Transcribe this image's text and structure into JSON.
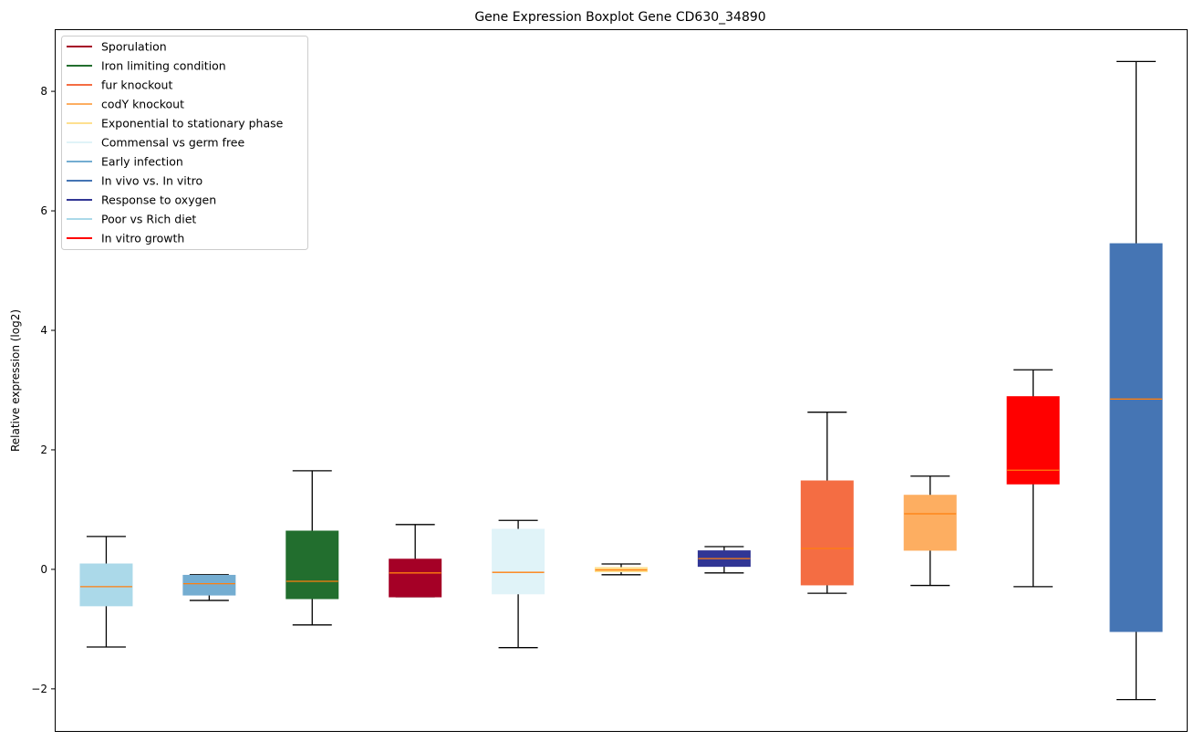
{
  "chart_data": {
    "type": "boxplot",
    "title": "Gene Expression Boxplot Gene CD630_34890",
    "xlabel": "",
    "ylabel": "Relative expression (log2)",
    "ylim": [
      -2.72,
      9.04
    ],
    "yticks": [
      -2,
      0,
      2,
      4,
      6,
      8
    ],
    "ytick_labels": [
      "−2",
      "0",
      "2",
      "4",
      "6",
      "8"
    ],
    "grid": false,
    "legend_position": "top-left",
    "median_color": "#ff7f0e",
    "legend": [
      {
        "label": "Sporulation",
        "color": "#a50026"
      },
      {
        "label": "Iron limiting condition",
        "color": "#226e2e"
      },
      {
        "label": "fur knockout",
        "color": "#f46d43"
      },
      {
        "label": "codY knockout",
        "color": "#fdae61"
      },
      {
        "label": "Exponential to stationary phase",
        "color": "#fee090"
      },
      {
        "label": "Commensal vs germ free",
        "color": "#e0f3f8"
      },
      {
        "label": "Early infection",
        "color": "#74add1"
      },
      {
        "label": "In vivo vs. In vitro",
        "color": "#4575b4"
      },
      {
        "label": "Response to oxygen",
        "color": "#313695"
      },
      {
        "label": "Poor vs Rich diet",
        "color": "#abd9e9"
      },
      {
        "label": "In vitro growth",
        "color": "#ff0000"
      }
    ],
    "boxes": [
      {
        "group": "Poor vs Rich diet",
        "color": "#abd9e9",
        "whislo": -1.3,
        "q1": -0.61,
        "med": -0.29,
        "q3": 0.09,
        "whishi": 0.55
      },
      {
        "group": "Early infection",
        "color": "#74add1",
        "whislo": -0.52,
        "q1": -0.43,
        "med": -0.24,
        "q3": -0.1,
        "whishi": -0.09
      },
      {
        "group": "Iron limiting condition",
        "color": "#226e2e",
        "whislo": -0.93,
        "q1": -0.49,
        "med": -0.2,
        "q3": 0.64,
        "whishi": 1.65
      },
      {
        "group": "Sporulation",
        "color": "#a50026",
        "whislo": -0.46,
        "q1": -0.46,
        "med": -0.06,
        "q3": 0.17,
        "whishi": 0.75
      },
      {
        "group": "Commensal vs germ free",
        "color": "#e0f3f8",
        "whislo": -1.31,
        "q1": -0.41,
        "med": -0.05,
        "q3": 0.67,
        "whishi": 0.82
      },
      {
        "group": "Exponential to stationary phase",
        "color": "#fee090",
        "whislo": -0.09,
        "q1": -0.04,
        "med": -0.01,
        "q3": 0.03,
        "whishi": 0.09
      },
      {
        "group": "Response to oxygen",
        "color": "#313695",
        "whislo": -0.06,
        "q1": 0.05,
        "med": 0.18,
        "q3": 0.31,
        "whishi": 0.38
      },
      {
        "group": "fur knockout",
        "color": "#f46d43",
        "whislo": -0.4,
        "q1": -0.26,
        "med": 0.35,
        "q3": 1.48,
        "whishi": 2.63
      },
      {
        "group": "codY knockout",
        "color": "#fdae61",
        "whislo": -0.27,
        "q1": 0.32,
        "med": 0.93,
        "q3": 1.24,
        "whishi": 1.56
      },
      {
        "group": "In vitro growth",
        "color": "#ff0000",
        "whislo": -0.29,
        "q1": 1.43,
        "med": 1.66,
        "q3": 2.89,
        "whishi": 3.34
      },
      {
        "group": "In vivo vs. In vitro",
        "color": "#4575b4",
        "whislo": -2.18,
        "q1": -1.04,
        "med": 2.85,
        "q3": 5.45,
        "whishi": 8.5
      }
    ]
  }
}
